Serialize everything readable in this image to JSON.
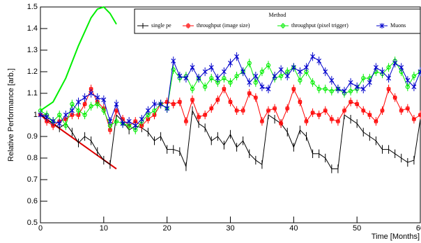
{
  "chart_data": {
    "type": "line",
    "x_label": "Time [Months]",
    "y_label": "Relative Performance [arb.]",
    "legend_title": "Method",
    "legend": "top-right",
    "x": [
      0,
      1,
      2,
      3,
      4,
      5,
      6,
      7,
      8,
      9,
      10,
      11,
      12,
      13,
      14,
      15,
      16,
      17,
      18,
      19,
      20,
      21,
      22,
      23,
      24,
      25,
      26,
      27,
      28,
      29,
      30,
      31,
      32,
      33,
      34,
      35,
      36,
      37,
      38,
      39,
      40,
      41,
      42,
      43,
      44,
      45,
      46,
      47,
      48,
      49,
      50,
      51,
      52,
      53,
      54,
      55,
      56,
      57,
      58,
      59,
      60
    ],
    "xlim": [
      0,
      60
    ],
    "xticks": [
      0,
      10,
      20,
      30,
      40,
      50,
      60
    ],
    "ylim": [
      0.5,
      1.5
    ],
    "yticks": [
      0.5,
      0.6,
      0.7,
      0.8,
      0.9,
      1,
      1.1,
      1.2,
      1.3,
      1.4,
      1.5
    ],
    "series": [
      {
        "name": "single pe",
        "color": "#000000",
        "marker": "none",
        "error": 0.02,
        "values": [
          1.0,
          0.98,
          0.96,
          0.94,
          0.96,
          0.92,
          0.87,
          0.9,
          0.88,
          0.83,
          0.79,
          0.77,
          1.0,
          0.97,
          0.93,
          0.95,
          0.94,
          0.92,
          0.88,
          0.9,
          0.84,
          0.84,
          0.83,
          0.76,
          1.02,
          0.96,
          0.94,
          0.88,
          0.9,
          0.86,
          0.91,
          0.85,
          0.88,
          0.82,
          0.79,
          0.77,
          1.0,
          0.98,
          0.96,
          0.92,
          0.85,
          0.93,
          0.9,
          0.82,
          0.82,
          0.8,
          0.75,
          0.75,
          1.0,
          0.98,
          0.96,
          0.92,
          0.9,
          0.88,
          0.84,
          0.84,
          0.82,
          0.8,
          0.78,
          0.79,
          0.98
        ]
      },
      {
        "name": "throughput (image size)",
        "color": "#ff0000",
        "marker": "square",
        "error": 0.02,
        "values": [
          1.0,
          0.97,
          0.95,
          0.97,
          0.98,
          1.0,
          1.0,
          1.05,
          1.12,
          1.06,
          1.03,
          0.93,
          1.02,
          0.98,
          0.95,
          0.97,
          0.95,
          0.98,
          1.0,
          1.05,
          1.06,
          1.05,
          1.06,
          0.97,
          1.07,
          0.99,
          1.0,
          1.03,
          1.07,
          1.12,
          1.06,
          1.02,
          1.02,
          1.1,
          1.08,
          0.97,
          1.02,
          1.03,
          0.96,
          1.03,
          1.12,
          1.06,
          0.97,
          1.01,
          1.0,
          1.02,
          0.98,
          0.97,
          1.02,
          1.06,
          1.05,
          1.02,
          1.0,
          0.97,
          1.02,
          1.12,
          1.08,
          1.02,
          1.03,
          0.98,
          1.0
        ]
      },
      {
        "name": "throughput (pixel trigger)",
        "color": "#00ee00",
        "marker": "circle",
        "error": 0.02,
        "values": [
          1.02,
          1.0,
          0.97,
          1.0,
          0.95,
          1.05,
          1.02,
          1.0,
          1.04,
          1.05,
          1.02,
          0.95,
          0.97,
          0.96,
          0.95,
          0.93,
          0.97,
          1.0,
          1.02,
          1.05,
          1.03,
          1.21,
          1.17,
          1.18,
          1.12,
          1.17,
          1.13,
          1.17,
          1.15,
          1.17,
          1.15,
          1.18,
          1.2,
          1.24,
          1.15,
          1.2,
          1.23,
          1.17,
          1.18,
          1.2,
          1.22,
          1.16,
          1.2,
          1.15,
          1.12,
          1.12,
          1.11,
          1.12,
          1.1,
          1.11,
          1.12,
          1.17,
          1.17,
          1.2,
          1.19,
          1.22,
          1.25,
          1.2,
          1.13,
          1.18,
          1.2
        ]
      },
      {
        "name": "Muons",
        "color": "#0000cc",
        "marker": "cross",
        "error": 0.02,
        "values": [
          1.0,
          0.99,
          0.97,
          0.96,
          1.0,
          1.02,
          1.06,
          1.08,
          1.1,
          1.08,
          1.07,
          0.97,
          1.05,
          0.96,
          0.97,
          0.95,
          0.98,
          1.02,
          1.05,
          1.05,
          1.03,
          1.25,
          1.18,
          1.17,
          1.22,
          1.17,
          1.2,
          1.22,
          1.17,
          1.2,
          1.24,
          1.27,
          1.2,
          1.15,
          1.18,
          1.13,
          1.12,
          1.18,
          1.21,
          1.18,
          1.22,
          1.2,
          1.22,
          1.27,
          1.25,
          1.2,
          1.16,
          1.12,
          1.11,
          1.15,
          1.13,
          1.12,
          1.15,
          1.22,
          1.2,
          1.17,
          1.24,
          1.22,
          1.16,
          1.13,
          1.2
        ]
      }
    ],
    "fits": [
      {
        "color": "#00ee00",
        "x": [
          0,
          2,
          4,
          6,
          8,
          9,
          10,
          11,
          12
        ],
        "values": [
          1.02,
          1.06,
          1.17,
          1.32,
          1.45,
          1.49,
          1.5,
          1.47,
          1.42
        ]
      },
      {
        "color": "#dd0000",
        "x": [
          0,
          12
        ],
        "values": [
          1.0,
          0.75
        ]
      }
    ]
  }
}
